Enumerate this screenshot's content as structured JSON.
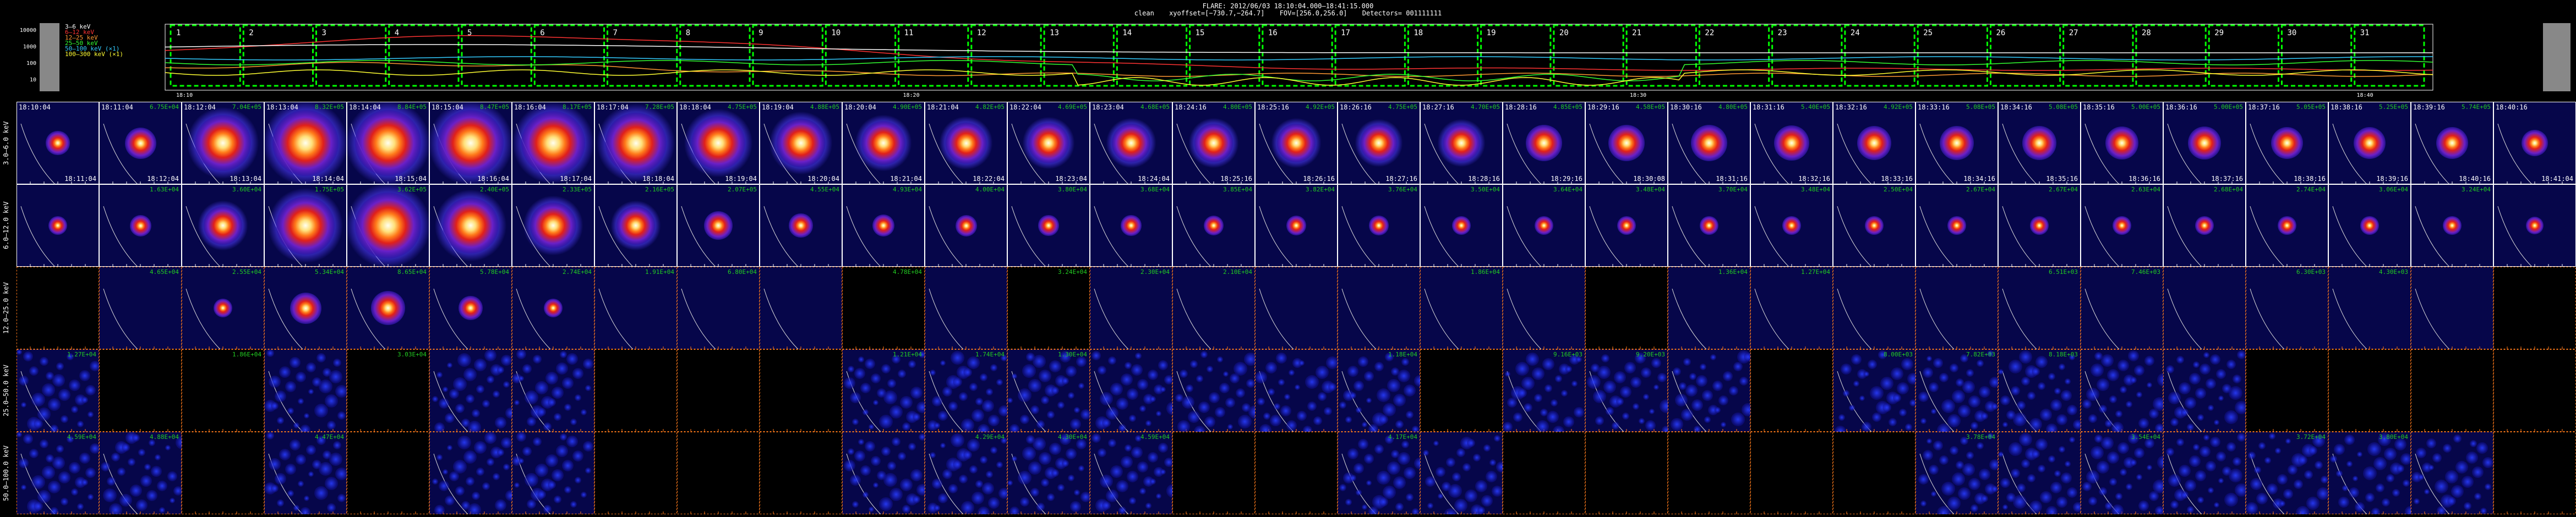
{
  "header": {
    "title": "FLARE: 2012/06/03 18:10:04.000–18:41:15.000",
    "algorithm": "clean",
    "xyoffset": "xyoffset=[−730.7,−264.7]",
    "fov": "FOV=[256.0,256.0]",
    "detectors": "Detectors= 001111111"
  },
  "lightcurve": {
    "legend": [
      "3–6 keV",
      "6–12 keV",
      "12–25 keV",
      "25–50 keV",
      "50–100 keV (×1)",
      "100–300 keV (×1)"
    ],
    "legend_colors": [
      "#ffffff",
      "#ff3333",
      "#ff9933",
      "#33ff33",
      "#33ccff",
      "#ffff33"
    ],
    "yticks": [
      "10000",
      "1000",
      "100",
      "10"
    ],
    "xticks": [
      "18:10",
      "18:20",
      "18:30",
      "18:40"
    ],
    "interval_labels": [
      "1",
      "2",
      "3",
      "4",
      "5",
      "6",
      "7",
      "8",
      "9",
      "10",
      "11",
      "12",
      "13",
      "14",
      "15",
      "16",
      "17",
      "18",
      "19",
      "20",
      "21",
      "22",
      "23",
      "24",
      "25",
      "26",
      "27",
      "28",
      "29",
      "30",
      "31"
    ],
    "box_color": "#00ff00"
  },
  "energy_bands": [
    "3.0–6.0 keV",
    "6.0–12.0 keV",
    "12.0–25.0 keV",
    "25.0–50.0 keV",
    "50.0–100.0 keV"
  ],
  "band_grid_colors": [
    "#ffffff",
    "#ffffff",
    "#ff7a1a",
    "#ff7a1a",
    "#ff7a1a"
  ],
  "start_times": [
    "18:10:04",
    "18:11:04",
    "18:12:04",
    "18:13:04",
    "18:14:04",
    "18:15:04",
    "18:16:04",
    "18:17:04",
    "18:18:04",
    "18:19:04",
    "18:20:04",
    "18:21:04",
    "18:22:04",
    "18:23:04",
    "18:24:16",
    "18:25:16",
    "18:26:16",
    "18:27:16",
    "18:28:16",
    "18:29:16",
    "18:30:16",
    "18:31:16",
    "18:32:16",
    "18:33:16",
    "18:34:16",
    "18:35:16",
    "18:36:16",
    "18:37:16",
    "18:38:16",
    "18:39:16",
    "18:40:16"
  ],
  "end_times": [
    "18:11:04",
    "18:12:04",
    "18:13:04",
    "18:14:04",
    "18:15:04",
    "18:16:04",
    "18:17:04",
    "18:18:04",
    "18:19:04",
    "18:20:04",
    "18:21:04",
    "18:22:04",
    "18:23:04",
    "18:24:04",
    "18:25:16",
    "18:26:16",
    "18:27:16",
    "18:28:16",
    "18:29:16",
    "18:30:08",
    "18:31:16",
    "18:32:16",
    "18:33:16",
    "18:34:16",
    "18:35:16",
    "18:36:16",
    "18:37:16",
    "18:38:16",
    "18:39:16",
    "18:40:16",
    "18:41:04"
  ],
  "peak_values": [
    [
      "",
      "6.75E+04",
      "7.04E+05",
      "8.32E+05",
      "8.84E+05",
      "8.47E+05",
      "8.17E+05",
      "7.28E+05",
      "4.75E+05",
      "4.88E+05",
      "4.90E+05",
      "4.82E+05",
      "4.69E+05",
      "4.68E+05",
      "4.80E+05",
      "4.92E+05",
      "4.75E+05",
      "4.70E+05",
      "4.85E+05",
      "4.58E+05",
      "4.80E+05",
      "5.40E+05",
      "4.92E+05",
      "5.08E+05",
      "5.08E+05",
      "5.00E+05",
      "5.00E+05",
      "5.05E+05",
      "5.25E+05",
      "5.74E+05",
      ""
    ],
    [
      "",
      "1.63E+04",
      "3.60E+04",
      "1.75E+05",
      "3.62E+05",
      "2.40E+05",
      "2.33E+05",
      "2.16E+05",
      "2.07E+05",
      "4.55E+04",
      "4.93E+04",
      "4.00E+04",
      "3.80E+04",
      "3.68E+04",
      "3.85E+04",
      "3.82E+04",
      "3.76E+04",
      "3.50E+04",
      "3.64E+04",
      "3.48E+04",
      "3.70E+04",
      "3.48E+04",
      "2.50E+04",
      "2.67E+04",
      "2.67E+04",
      "2.63E+04",
      "2.68E+04",
      "2.74E+04",
      "3.06E+04",
      "3.24E+04",
      ""
    ],
    [
      "",
      "4.65E+04",
      "2.55E+04",
      "5.34E+04",
      "8.65E+04",
      "5.78E+04",
      "2.74E+04",
      "1.91E+04",
      "6.80E+04",
      "",
      "4.78E+04",
      "",
      "3.24E+04",
      "2.30E+04",
      "2.10E+04",
      "",
      "",
      "1.86E+04",
      "",
      "",
      "1.36E+04",
      "1.27E+04",
      "",
      "",
      "6.51E+03",
      "7.46E+03",
      "",
      "6.30E+03",
      "4.30E+03",
      "",
      ""
    ],
    [
      "1.27E+04",
      "",
      "1.86E+04",
      "",
      "3.03E+04",
      "",
      "",
      "",
      "",
      "",
      "1.21E+04",
      "1.74E+04",
      "1.30E+04",
      "",
      "",
      "",
      "1.18E+04",
      "",
      "9.16E+03",
      "9.20E+03",
      "",
      "",
      "8.00E+03",
      "7.82E+03",
      "8.18E+03",
      "",
      "",
      "",
      "",
      "",
      ""
    ],
    [
      "4.59E+04",
      "4.88E+04",
      "",
      "4.47E+04",
      "",
      "",
      "",
      "",
      "",
      "",
      "",
      "4.29E+04",
      "4.30E+04",
      "4.59E+04",
      "",
      "",
      "4.17E+04",
      "",
      "",
      "",
      "",
      "",
      "",
      "3.78E+04",
      "",
      "3.54E+04",
      "",
      "3.72E+04",
      "3.80E+04",
      "",
      ""
    ]
  ],
  "cell_types": [
    "IIIIIIIIIIIIIIIIIIIIIIIIIIIIIII",
    "IIIIIIIIIIIIIIIIIIIIIIIIIIIIIII",
    "BIIIIIIIIIBIBIIIIIIBIIIIIIIIIIB",
    "IBBIBIIBBBIIIIIIIBIIIBIIIIIBBBB",
    "IIBIBIIBBBIIIIBBIIBBBBBIIIIIIIB"
  ],
  "brightness": [
    [
      0.15,
      0.3,
      0.8,
      1.0,
      1.0,
      1.0,
      0.95,
      0.9,
      0.75,
      0.65,
      0.55,
      0.5,
      0.48,
      0.45,
      0.45,
      0.45,
      0.42,
      0.42,
      0.4,
      0.4,
      0.4,
      0.38,
      0.36,
      0.35,
      0.35,
      0.33,
      0.33,
      0.32,
      0.32,
      0.32,
      0.2
    ],
    [
      0.05,
      0.1,
      0.45,
      0.85,
      1.0,
      0.8,
      0.6,
      0.45,
      0.25,
      0.15,
      0.12,
      0.1,
      0.08,
      0.08,
      0.07,
      0.07,
      0.06,
      0.05,
      0.05,
      0.05,
      0.05,
      0.04,
      0.04,
      0.04,
      0.04,
      0.04,
      0.04,
      0.04,
      0.04,
      0.04,
      0.03
    ],
    [
      0,
      0,
      0.05,
      0.3,
      0.35,
      0.15,
      0.05,
      0,
      0,
      0,
      0,
      0,
      0,
      0,
      0,
      0,
      0,
      0,
      0,
      0,
      0,
      0,
      0,
      0,
      0,
      0,
      0,
      0,
      0,
      0,
      0
    ],
    [
      0,
      0,
      0,
      0,
      0,
      0,
      0,
      0,
      0,
      0,
      0,
      0,
      0,
      0,
      0,
      0,
      0,
      0,
      0,
      0,
      0,
      0,
      0,
      0,
      0,
      0,
      0,
      0,
      0,
      0,
      0
    ],
    [
      0,
      0,
      0,
      0,
      0,
      0,
      0,
      0,
      0,
      0,
      0,
      0,
      0,
      0,
      0,
      0,
      0,
      0,
      0,
      0,
      0,
      0,
      0,
      0,
      0,
      0,
      0,
      0,
      0,
      0,
      0
    ]
  ]
}
